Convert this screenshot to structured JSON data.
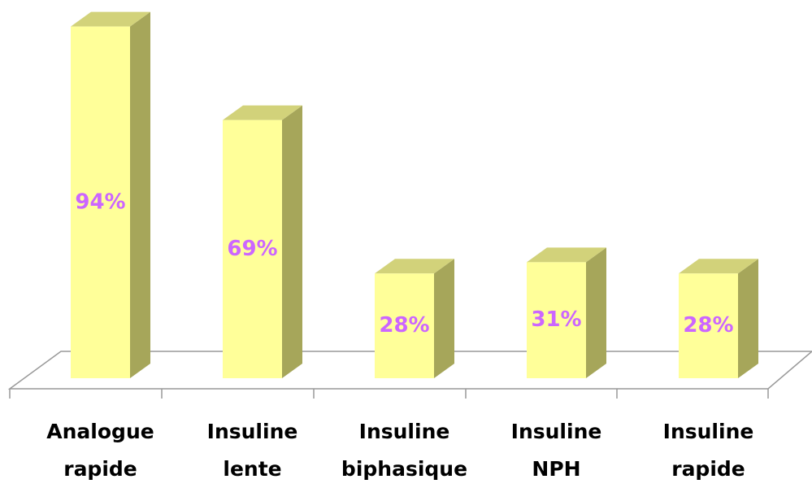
{
  "chart_data": {
    "type": "bar3d",
    "categories": [
      "Analogue rapide",
      "Insuline lente",
      "Insuline biphasique",
      "Insuline NPH",
      "Insuline rapide"
    ],
    "values": [
      94,
      69,
      28,
      31,
      28
    ],
    "value_labels": [
      "94%",
      "69%",
      "28%",
      "31%",
      "28%"
    ],
    "color": "#ffff99"
  }
}
